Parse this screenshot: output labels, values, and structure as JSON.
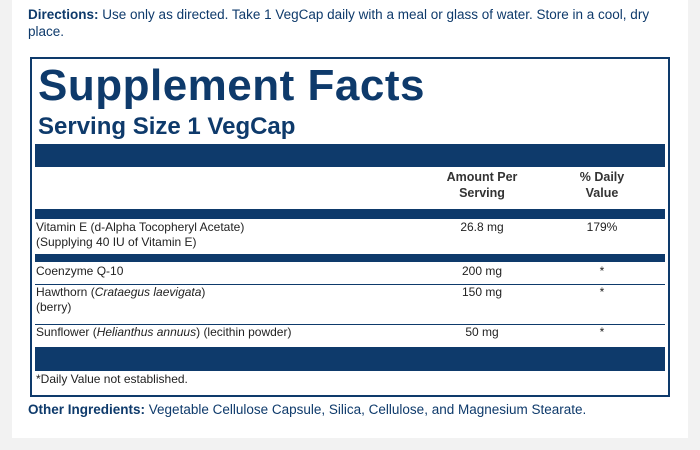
{
  "directions": {
    "label": "Directions:",
    "text": "Use only as directed. Take 1 VegCap daily with a meal or glass of water. Store in a cool, dry place."
  },
  "facts": {
    "title": "Supplement Facts",
    "serving_size": "Serving Size 1 VegCap",
    "headers": [
      "Amount Per Serving",
      "% Daily Value"
    ],
    "rows": [
      {
        "name_parts": [
          {
            "text": "Vitamin E (d-Alpha Tocopheryl Acetate)"
          }
        ],
        "note": "(Supplying 40 IU of Vitamin E)",
        "amount": "26.8 mg",
        "dv": "179%"
      },
      {
        "name_parts": [
          {
            "text": "Coenzyme Q-10"
          }
        ],
        "amount": "200 mg",
        "dv": "*"
      },
      {
        "name_parts": [
          {
            "text": "Hawthorn ("
          },
          {
            "text": "Crataegus laevigata",
            "italic": true
          },
          {
            "text": ")"
          }
        ],
        "note": "(berry)",
        "amount": "150 mg",
        "dv": "*"
      },
      {
        "name_parts": [
          {
            "text": "Sunflower ("
          },
          {
            "text": "Helianthus annuus",
            "italic": true
          },
          {
            "text": ") (lecithin powder)"
          }
        ],
        "amount": "50 mg",
        "dv": "*"
      }
    ],
    "footnote": "*Daily Value not established."
  },
  "other_ingredients": {
    "label": "Other Ingredients:",
    "text": "Vegetable Cellulose Capsule, Silica, Cellulose, and Magnesium Stearate."
  }
}
